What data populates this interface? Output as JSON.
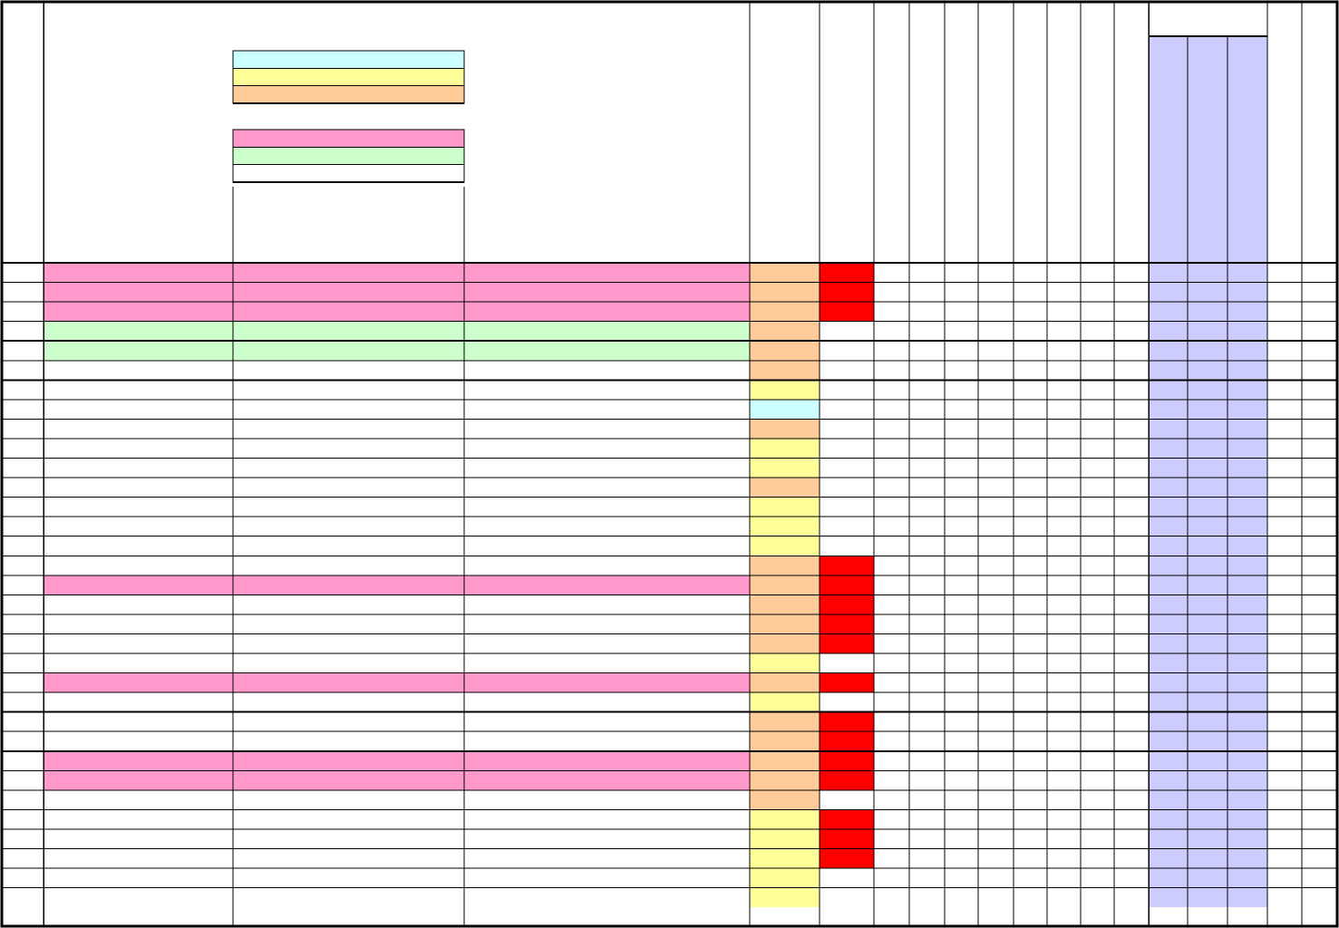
{
  "colors": {
    "pink": "#ff99cc",
    "green": "#ccffcc",
    "white": "#ffffff",
    "orange": "#ffcc99",
    "yellow": "#ffff99",
    "cyan": "#ccffff",
    "red": "#ff0000",
    "lavender": "#ccccff",
    "grid": "#000000"
  },
  "legend": {
    "group_1": [
      "cyan",
      "yellow",
      "orange"
    ],
    "group_2": [
      "pink",
      "green",
      "white"
    ]
  },
  "rows": [
    {
      "band": "pink",
      "status": "orange",
      "flag": "red"
    },
    {
      "band": "pink",
      "status": "orange",
      "flag": "red"
    },
    {
      "band": "pink",
      "status": "orange",
      "flag": "red"
    },
    {
      "band": "green",
      "status": "orange",
      "flag": "white"
    },
    {
      "band": "green",
      "status": "orange",
      "flag": "white"
    },
    {
      "band": "white",
      "status": "orange",
      "flag": "white"
    },
    {
      "band": "white",
      "status": "yellow",
      "flag": "white"
    },
    {
      "band": "white",
      "status": "cyan",
      "flag": "white"
    },
    {
      "band": "white",
      "status": "orange",
      "flag": "white"
    },
    {
      "band": "white",
      "status": "yellow",
      "flag": "white"
    },
    {
      "band": "white",
      "status": "yellow",
      "flag": "white"
    },
    {
      "band": "white",
      "status": "orange",
      "flag": "white"
    },
    {
      "band": "white",
      "status": "yellow",
      "flag": "white"
    },
    {
      "band": "white",
      "status": "yellow",
      "flag": "white"
    },
    {
      "band": "white",
      "status": "yellow",
      "flag": "white"
    },
    {
      "band": "white",
      "status": "orange",
      "flag": "red"
    },
    {
      "band": "pink",
      "status": "orange",
      "flag": "red"
    },
    {
      "band": "white",
      "status": "orange",
      "flag": "red"
    },
    {
      "band": "white",
      "status": "orange",
      "flag": "red"
    },
    {
      "band": "white",
      "status": "orange",
      "flag": "red"
    },
    {
      "band": "white",
      "status": "yellow",
      "flag": "white"
    },
    {
      "band": "pink",
      "status": "orange",
      "flag": "red"
    },
    {
      "band": "white",
      "status": "yellow",
      "flag": "white"
    },
    {
      "band": "white",
      "status": "orange",
      "flag": "red"
    },
    {
      "band": "white",
      "status": "orange",
      "flag": "red"
    },
    {
      "band": "pink",
      "status": "orange",
      "flag": "red"
    },
    {
      "band": "pink",
      "status": "orange",
      "flag": "red"
    },
    {
      "band": "white",
      "status": "orange",
      "flag": "white"
    },
    {
      "band": "white",
      "status": "yellow",
      "flag": "red"
    },
    {
      "band": "white",
      "status": "yellow",
      "flag": "red"
    },
    {
      "band": "white",
      "status": "yellow",
      "flag": "red"
    },
    {
      "band": "white",
      "status": "yellow",
      "flag": "white"
    },
    {
      "band": "white",
      "status": "yellow",
      "flag": "white"
    }
  ]
}
